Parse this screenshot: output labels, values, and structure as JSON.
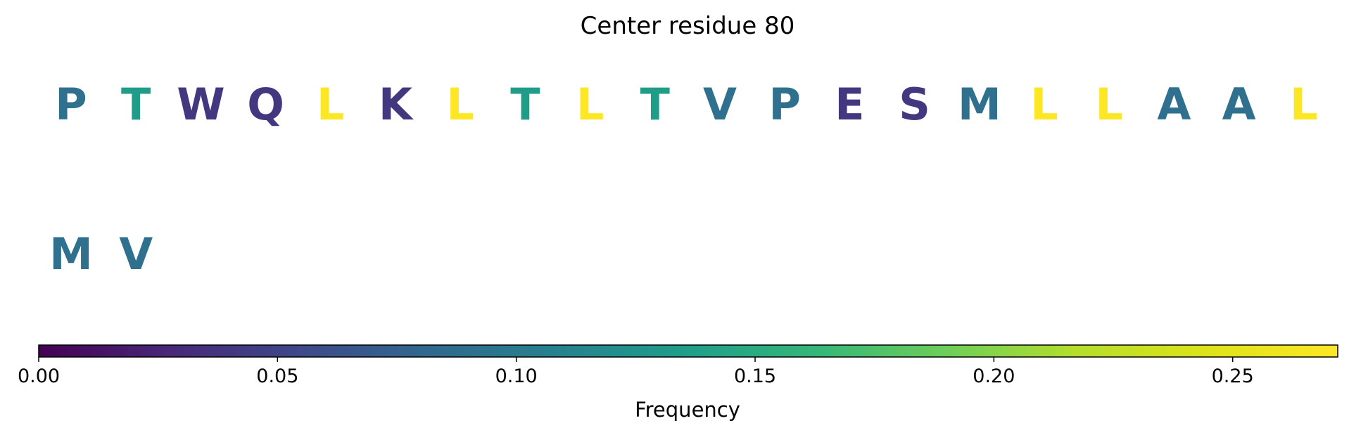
{
  "chart_data": {
    "type": "table",
    "title": "Center residue 80",
    "rows": [
      [
        "P",
        "T",
        "W",
        "Q",
        "L",
        "K",
        "L",
        "T",
        "L",
        "T",
        "V",
        "P",
        "E",
        "S",
        "M",
        "L",
        "L",
        "A",
        "A",
        "L"
      ],
      [
        "M",
        "V"
      ]
    ],
    "frequencies": [
      [
        0.09,
        0.135,
        0.04,
        0.04,
        0.272,
        0.04,
        0.272,
        0.135,
        0.272,
        0.135,
        0.09,
        0.09,
        0.04,
        0.04,
        0.09,
        0.272,
        0.272,
        0.09,
        0.09,
        0.272
      ],
      [
        0.09,
        0.09
      ]
    ],
    "colorbar": {
      "colormap": "viridis",
      "label": "Frequency",
      "range": [
        0.0,
        0.272
      ],
      "ticks": [
        0.0,
        0.05,
        0.1,
        0.15,
        0.2,
        0.25
      ],
      "tick_labels": [
        "0.00",
        "0.05",
        "0.10",
        "0.15",
        "0.20",
        "0.25"
      ],
      "orientation": "horizontal",
      "placement": "bottom"
    },
    "grid": false
  }
}
